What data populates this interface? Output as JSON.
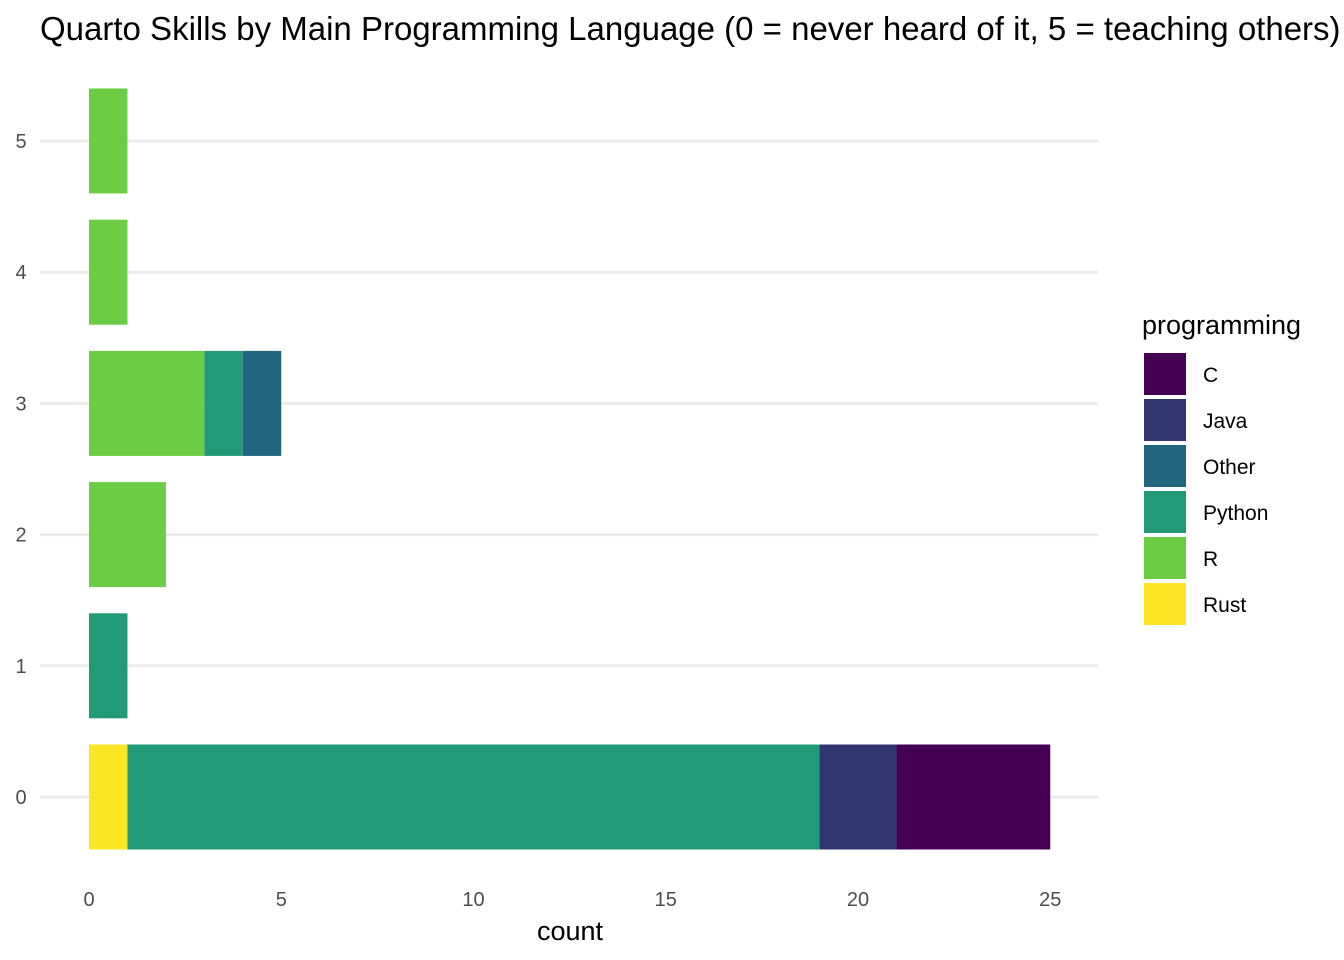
{
  "chart_data": {
    "type": "bar",
    "orientation": "horizontal",
    "stacked": true,
    "title": "Quarto Skills by Main Programming Language (0 = never heard of it, 5 = teaching others)",
    "xlabel": "count",
    "ylabel": "",
    "categories": [
      "0",
      "1",
      "2",
      "3",
      "4",
      "5"
    ],
    "xlim": [
      0,
      25
    ],
    "xticks": [
      "0",
      "5",
      "10",
      "15",
      "20",
      "25"
    ],
    "grid": "horizontal major gridlines",
    "legend": {
      "title": "programming",
      "placement": "right",
      "entries": [
        "C",
        "Java",
        "Other",
        "Python",
        "R",
        "Rust"
      ]
    },
    "stack_order": [
      "Rust",
      "R",
      "Python",
      "Other",
      "Java",
      "C"
    ],
    "series": [
      {
        "name": "C",
        "color": "#440154",
        "values": [
          4,
          0,
          0,
          0,
          0,
          0
        ]
      },
      {
        "name": "Java",
        "color": "#31356e",
        "values": [
          2,
          0,
          0,
          0,
          0,
          0
        ]
      },
      {
        "name": "Other",
        "color": "#21657e",
        "values": [
          0,
          0,
          0,
          1,
          0,
          0
        ]
      },
      {
        "name": "Python",
        "color": "#219b77",
        "values": [
          18,
          1,
          0,
          1,
          0,
          0
        ]
      },
      {
        "name": "R",
        "color": "#6ccc43",
        "values": [
          0,
          0,
          2,
          3,
          1,
          1
        ]
      },
      {
        "name": "Rust",
        "color": "#fde725",
        "values": [
          1,
          0,
          0,
          0,
          0,
          0
        ]
      }
    ]
  }
}
